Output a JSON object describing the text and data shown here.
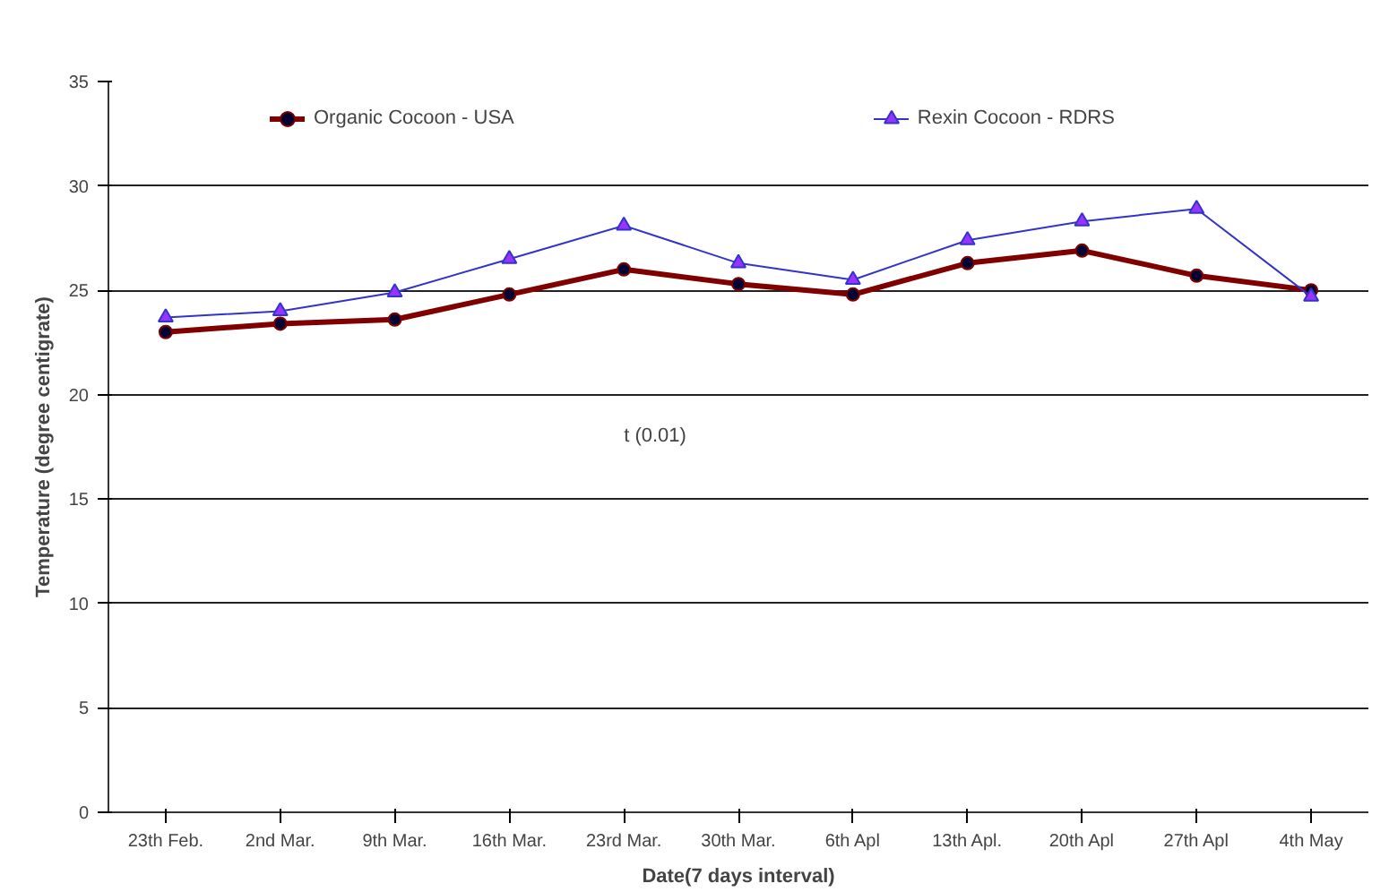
{
  "chart_data": {
    "type": "line",
    "categories": [
      "23th Feb.",
      "2nd Mar.",
      "9th Mar.",
      "16th Mar.",
      "23rd Mar.",
      "30th Mar.",
      "6th Apl",
      "13th Apl.",
      "20th Apl",
      "27th Apl",
      "4th May"
    ],
    "series": [
      {
        "name": "Organic Cocoon - USA",
        "color": "#800000",
        "marker": "circle",
        "values": [
          23.0,
          23.4,
          23.6,
          24.8,
          26.0,
          25.3,
          24.8,
          26.3,
          26.9,
          25.7,
          25.0
        ]
      },
      {
        "name": "Rexin Cocoon - RDRS",
        "color": "#3333cc",
        "marker": "triangle",
        "values": [
          23.7,
          24.0,
          24.9,
          26.5,
          28.1,
          26.3,
          25.5,
          27.4,
          28.3,
          28.9,
          24.7
        ]
      }
    ],
    "xlabel": "Date(7 days interval)",
    "ylabel": "Temperature (degree centigrate)",
    "ylim": [
      0,
      35
    ],
    "yticks": [
      0,
      5,
      10,
      15,
      20,
      25,
      30,
      35
    ],
    "grid": "y",
    "legend": "top",
    "annotations": [
      "t (0.01)"
    ]
  }
}
